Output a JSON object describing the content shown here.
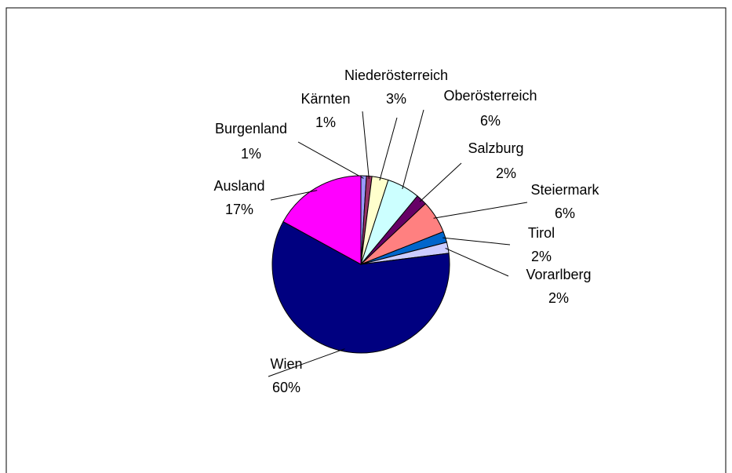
{
  "chart_data": {
    "type": "pie",
    "categories": [
      "Burgenland",
      "Kärnten",
      "Niederösterreich",
      "Oberösterreich",
      "Salzburg",
      "Steiermark",
      "Tirol",
      "Vorarlberg",
      "Wien",
      "Ausland"
    ],
    "values": [
      1,
      1,
      3,
      6,
      2,
      6,
      2,
      2,
      60,
      17
    ],
    "value_labels": [
      "1%",
      "1%",
      "3%",
      "6%",
      "2%",
      "6%",
      "2%",
      "2%",
      "60%",
      "17%"
    ],
    "colors": [
      "#9999ff",
      "#993366",
      "#ffffcc",
      "#ccffff",
      "#660066",
      "#ff8080",
      "#0066cc",
      "#ccccff",
      "#000080",
      "#ff00ff"
    ]
  }
}
